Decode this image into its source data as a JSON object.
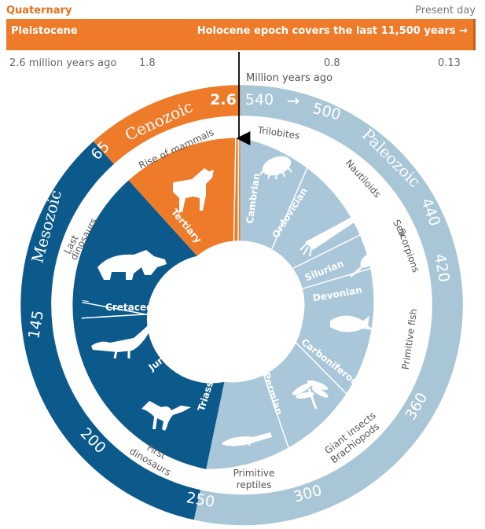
{
  "header": {
    "period_label": "Quaternary",
    "present_label": "Present day",
    "pleistocene_label": "Pleistocene",
    "holocene_label": "Holocene epoch covers the last 11,500 years →",
    "ticks": [
      "2.6 million years ago",
      "1.8",
      "0.8",
      "0.13"
    ],
    "unit_label": "Million years ago"
  },
  "eras": {
    "cenozoic": "Cenozoic",
    "paleozoic": "Paleozoic",
    "mesozoic": "Mesozoic"
  },
  "ages": {
    "a2_6": "2.6",
    "a540": "540",
    "a500": "500",
    "a440": "440",
    "a420": "420",
    "a360": "360",
    "a300": "300",
    "a250": "250",
    "a200": "200",
    "a145": "145",
    "a65": "65",
    "arrow": "→"
  },
  "periods": {
    "cambrian": "Cambrian",
    "ordovician": "Ordovician",
    "silurian": "Silurian",
    "devonian": "Devonian",
    "carboniferous": "Carboniferous",
    "permian": "Permian",
    "triassic": "Triassic",
    "jurassic": "Jurassic",
    "cretaceous": "Cretaceous",
    "tertiary": "Tertiary"
  },
  "events": {
    "trilobites": "Trilobites",
    "nautiloids": "Nautiloids",
    "sea_scorpions_1": "Sea",
    "sea_scorpions_2": "Scorpions",
    "primitive_fish": "Primitive fish",
    "giant_insects": "Giant insects",
    "brachiopods": "Brachiopods",
    "primitive": "Primitive",
    "reptiles": "reptiles",
    "first": "First",
    "dinosaurs": "dinosaurs",
    "last": "Last",
    "dinosaurs2": "dinosaurs",
    "rise_of_mammals": "Rise of mammals"
  },
  "colors": {
    "cenozoic": "#ee7b2a",
    "paleozoic_outer": "#a9c6d6",
    "paleozoic_inner": "#aac7d9",
    "mesozoic": "#0c5a8c",
    "separator": "#ffffff"
  },
  "icons": [
    "trilobite-icon",
    "nautiloid-icon",
    "sea-scorpion-icon",
    "fish-icon",
    "dragonfly-icon",
    "reptile-icon",
    "dinosaur-icon",
    "sauropod-icon",
    "triceratops-icon",
    "horse-icon"
  ]
}
